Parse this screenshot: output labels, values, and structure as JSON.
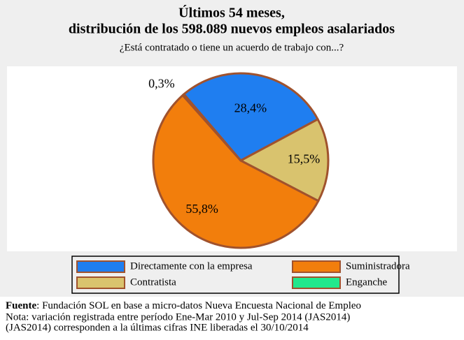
{
  "chart_data": {
    "type": "pie",
    "title": [
      "Últimos 54 meses,",
      "distribución de los 598.089 nuevos empleos asalariados"
    ],
    "subtitle": "¿Está contratado o tiene un acuerdo de trabajo con...?",
    "categories": [
      "Directamente con la empresa",
      "Contratista",
      "Suministradora",
      "Enganche"
    ],
    "values": [
      28.4,
      15.5,
      55.8,
      0.3
    ],
    "value_labels": [
      "28,4%",
      "15,5%",
      "55,8%",
      "0,3%"
    ],
    "colors": [
      "#1f7ef0",
      "#d9c36e",
      "#f27e0c",
      "#22e88c"
    ],
    "legend": "bottom",
    "source": {
      "label": "Fuente",
      "text": ": Fundación SOL en base a micro-datos Nueva Encuesta Nacional de Empleo"
    },
    "notes": [
      "Nota: variación registrada entre período Ene-Mar 2010 y Jul-Sep 2014 (JAS2014)",
      "(JAS2014) corresponden a la últimas cifras INE liberadas el 30/10/2014"
    ]
  }
}
